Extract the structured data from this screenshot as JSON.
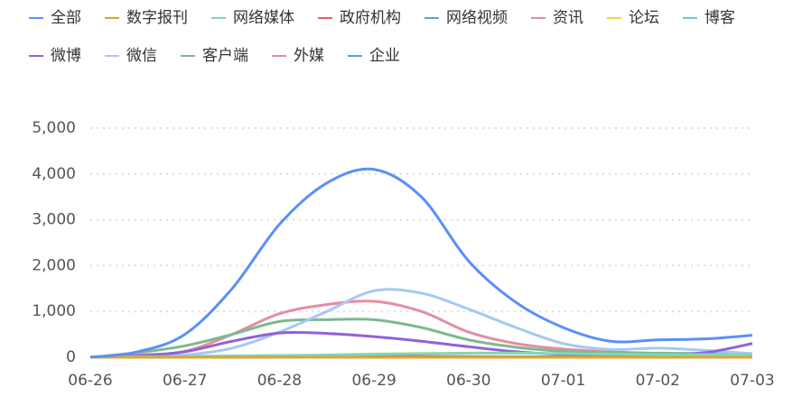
{
  "chart_data": {
    "type": "line",
    "categories": [
      "06-26",
      null,
      "06-27",
      null,
      "06-28",
      null,
      "06-29",
      null,
      "06-30",
      null,
      "07-01",
      null,
      "07-02",
      null,
      "07-03"
    ],
    "ylim": [
      0,
      5000
    ],
    "yticks": [
      0,
      {
        "value": 1000,
        "label": "1,000"
      },
      {
        "value": 2000,
        "label": "2,000"
      },
      {
        "value": 3000,
        "label": "3,000"
      },
      {
        "value": 4000,
        "label": "4,000"
      },
      {
        "value": 5000,
        "label": "5,000"
      }
    ],
    "grid": true,
    "series": [
      {
        "name": "全部",
        "color": "#5B8FF9",
        "values": [
          0,
          120,
          500,
          1500,
          2900,
          3800,
          4100,
          3500,
          2100,
          1200,
          650,
          350,
          380,
          400,
          480
        ]
      },
      {
        "name": "数字报刊",
        "color": "#D8A933",
        "values": [
          0,
          0,
          0,
          0,
          0,
          0,
          0,
          0,
          0,
          0,
          0,
          0,
          0,
          0,
          0
        ]
      },
      {
        "name": "网络媒体",
        "color": "#7FD8B6",
        "values": [
          0,
          10,
          20,
          30,
          40,
          50,
          70,
          80,
          90,
          90,
          80,
          70,
          60,
          60,
          60
        ]
      },
      {
        "name": "政府机构",
        "color": "#E0645A",
        "values": [
          0,
          0,
          5,
          10,
          15,
          20,
          20,
          20,
          15,
          10,
          10,
          10,
          5,
          5,
          5
        ]
      },
      {
        "name": "网络视频",
        "color": "#6A9FC8",
        "values": [
          0,
          0,
          0,
          0,
          0,
          0,
          0,
          0,
          0,
          0,
          0,
          0,
          0,
          0,
          0
        ]
      },
      {
        "name": "资讯",
        "color": "#D988B8",
        "values": [
          0,
          0,
          0,
          5,
          10,
          10,
          10,
          10,
          5,
          5,
          5,
          5,
          5,
          5,
          5
        ]
      },
      {
        "name": "论坛",
        "color": "#F6D44A",
        "values": [
          0,
          0,
          0,
          0,
          0,
          0,
          0,
          0,
          0,
          0,
          0,
          0,
          0,
          0,
          0
        ]
      },
      {
        "name": "博客",
        "color": "#6DCBE0",
        "values": [
          0,
          0,
          0,
          0,
          0,
          0,
          0,
          0,
          0,
          0,
          0,
          0,
          0,
          0,
          0
        ]
      },
      {
        "name": "微博",
        "color": "#9061DC",
        "values": [
          0,
          30,
          120,
          350,
          530,
          520,
          450,
          350,
          230,
          120,
          60,
          40,
          50,
          100,
          300
        ]
      },
      {
        "name": "微信",
        "color": "#A7C8F2",
        "values": [
          0,
          20,
          50,
          200,
          550,
          1000,
          1450,
          1400,
          1050,
          650,
          300,
          170,
          200,
          150,
          80
        ]
      },
      {
        "name": "客户端",
        "color": "#7CB98F",
        "values": [
          0,
          100,
          250,
          500,
          780,
          820,
          820,
          650,
          380,
          220,
          130,
          100,
          90,
          80,
          70
        ]
      },
      {
        "name": "外媒",
        "color": "#E38DA3",
        "values": [
          0,
          50,
          130,
          500,
          950,
          1150,
          1220,
          1000,
          550,
          300,
          180,
          120,
          80,
          60,
          50
        ]
      },
      {
        "name": "企业",
        "color": "#4EA3E8",
        "values": [
          0,
          0,
          0,
          0,
          0,
          0,
          0,
          0,
          0,
          0,
          0,
          0,
          0,
          0,
          0
        ]
      }
    ]
  }
}
